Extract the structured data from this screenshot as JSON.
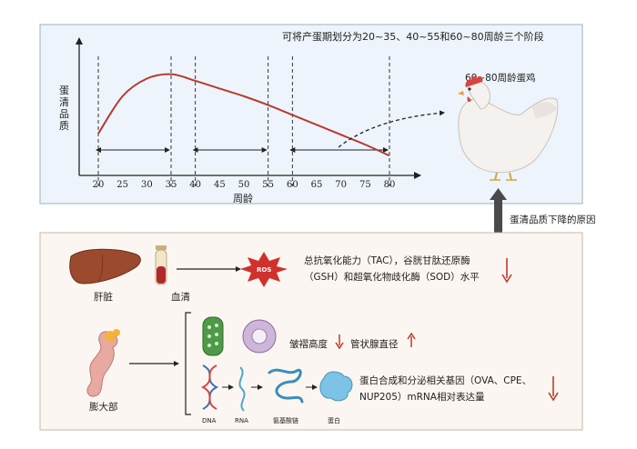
{
  "top_panel": {
    "note": "可将产蛋期划分为20~35、40~55和60~80周龄三个阶段",
    "ylabel_chars": [
      "蛋",
      "清",
      "品",
      "质"
    ],
    "xlabel": "周龄",
    "x_ticks": [
      "20",
      "25",
      "30",
      "35",
      "40",
      "45",
      "50",
      "55",
      "60",
      "65",
      "70",
      "75",
      "80"
    ],
    "hen_label": "60~80周龄蛋鸡"
  },
  "chart_data": {
    "type": "line",
    "xlabel": "周龄",
    "ylabel": "蛋清品质",
    "xlim": [
      20,
      80
    ],
    "x": [
      20,
      25,
      30,
      35,
      40,
      45,
      50,
      55,
      60,
      65,
      70,
      75,
      80
    ],
    "y": [
      0.38,
      0.72,
      0.88,
      0.92,
      0.86,
      0.79,
      0.72,
      0.64,
      0.55,
      0.46,
      0.37,
      0.28,
      0.18
    ],
    "phase_boundaries": [
      20,
      35,
      40,
      55,
      60,
      80
    ],
    "colors": {
      "line": "#b83a2e",
      "arrow": "#222222"
    }
  },
  "link": {
    "label": "蛋清品质下降的原因"
  },
  "bottom_panel": {
    "liver_label": "肝脏",
    "serum_label": "血清",
    "ros_label": "ROS",
    "antioxidant_line1": "总抗氧化能力（TAC），谷胱甘肽还原酶",
    "antioxidant_line2": "（GSH）和超氧化物歧化酶（SOD）水平",
    "magnum_label": "膨大部",
    "fold_height_label": "皱褶高度",
    "gland_diameter_label": "管状腺直径",
    "dna_label": "DNA",
    "rna_label": "RNA",
    "amino_acid_label": "氨基酸链",
    "protein_label": "蛋白",
    "gene_line1": "蛋白合成和分泌相关基因（OVA、CPE、",
    "gene_line2": "NUP205）mRNA相对表达量",
    "colors": {
      "down": "#c0392b",
      "up": "#c0392b",
      "panel_top": "#eef4fb",
      "panel_bottom": "#fbf6f1"
    }
  }
}
